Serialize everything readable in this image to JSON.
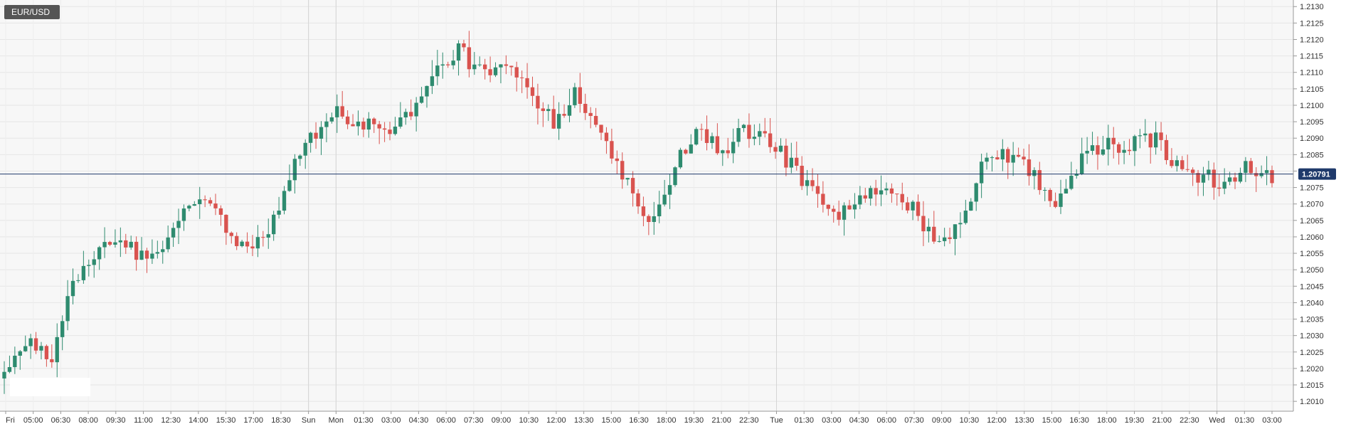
{
  "chart_data": {
    "type": "candlestick",
    "symbol": "EUR/USD",
    "current_price": "1.20791",
    "ylim": [
      1.2007,
      1.2132
    ],
    "y_ticks": [
      "1.2010",
      "1.2015",
      "1.2020",
      "1.2025",
      "1.2030",
      "1.2035",
      "1.2040",
      "1.2045",
      "1.2050",
      "1.2055",
      "1.2060",
      "1.2065",
      "1.2070",
      "1.2075",
      "1.2080",
      "1.2085",
      "1.2090",
      "1.2095",
      "1.2100",
      "1.2105",
      "1.2110",
      "1.2115",
      "1.2120",
      "1.2125",
      "1.2130"
    ],
    "x_ticks": [
      "Fri",
      "05:00",
      "06:30",
      "08:00",
      "09:30",
      "11:00",
      "12:30",
      "14:00",
      "15:30",
      "17:00",
      "18:30",
      "Sun",
      "Mon",
      "01:30",
      "03:00",
      "04:30",
      "06:00",
      "07:30",
      "09:00",
      "10:30",
      "12:00",
      "13:30",
      "15:00",
      "16:30",
      "18:00",
      "19:30",
      "21:00",
      "22:30",
      "Tue",
      "01:30",
      "03:00",
      "04:30",
      "06:00",
      "07:30",
      "09:00",
      "10:30",
      "12:00",
      "13:30",
      "15:00",
      "16:30",
      "18:00",
      "19:30",
      "21:00",
      "22:30",
      "Wed",
      "01:30",
      "03:00"
    ],
    "session_breaks": [
      "Sun",
      "Mon",
      "Tue",
      "Wed"
    ],
    "grid": true,
    "up_color": "#2e8b6f",
    "down_color": "#d9534f",
    "price_line_color": "#1f3a6b",
    "close_path": [
      1.2021,
      1.2029,
      1.2023,
      1.2048,
      1.2056,
      1.2059,
      1.2053,
      1.2059,
      1.2073,
      1.2066,
      1.2057,
      1.2059,
      1.2079,
      1.2092,
      1.2099,
      1.2094,
      1.2091,
      1.2097,
      1.2109,
      1.2117,
      1.2109,
      1.2111,
      1.2104,
      1.2094,
      1.2104,
      1.2089,
      1.2076,
      1.2063,
      1.2082,
      1.2091,
      1.2087,
      1.2092,
      1.2088,
      1.2081,
      1.2072,
      1.2067,
      1.2072,
      1.2073,
      1.2068,
      1.2059,
      1.2065,
      1.2085,
      1.2085,
      1.2079,
      1.207,
      1.2082,
      1.2089,
      1.2088,
      1.209,
      1.2083,
      1.2078,
      1.2077,
      1.2082,
      1.2079
    ]
  }
}
